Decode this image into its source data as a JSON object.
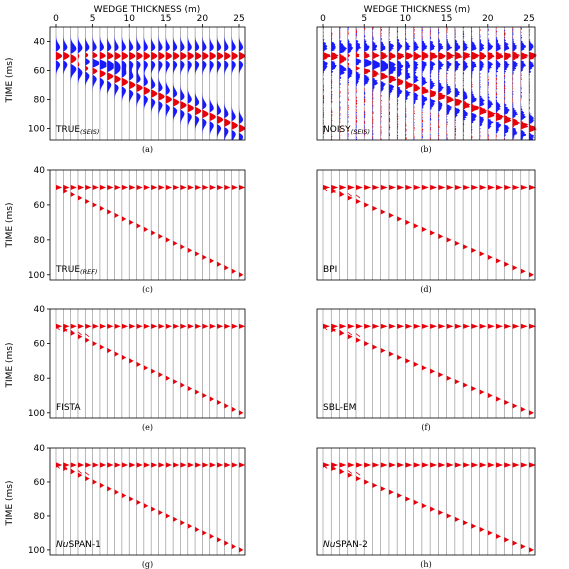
{
  "figure": {
    "top_axis_title": "WEDGE THICKNESS (m)",
    "y_axis_title": "TIME (ms)"
  },
  "chart_data": [
    {
      "id": "a",
      "caption": "(a)",
      "panel_label": "TRUE",
      "panel_label_sub": "(SEIS)",
      "type": "seismic-wiggle",
      "data_kind": "seismic",
      "noisy": false,
      "xlim": [
        0,
        25
      ],
      "ylim": [
        30,
        108
      ],
      "xticks": [
        0,
        5,
        10,
        15,
        20,
        25
      ],
      "yticks": [
        40,
        60,
        80,
        100
      ],
      "show_top_axis": true,
      "show_y_labels": true,
      "traces": 26,
      "reflector_top_time_ms": 50,
      "reflector_base_start_ms": 50,
      "reflector_base_end_ms": 100
    },
    {
      "id": "b",
      "caption": "(b)",
      "panel_label": "NOISY",
      "panel_label_sub": "(SEIS)",
      "type": "seismic-wiggle",
      "data_kind": "seismic",
      "noisy": true,
      "xlim": [
        0,
        25
      ],
      "ylim": [
        30,
        108
      ],
      "xticks": [
        0,
        5,
        10,
        15,
        20,
        25
      ],
      "show_top_axis": true,
      "show_y_labels": false,
      "traces": 26,
      "reflector_top_time_ms": 50,
      "reflector_base_start_ms": 50,
      "reflector_base_end_ms": 100
    },
    {
      "id": "c",
      "caption": "(c)",
      "panel_label": "TRUE",
      "panel_label_sub": "(REF)",
      "type": "reflectivity-spikes",
      "data_kind": "reflectivity",
      "method": "true",
      "xlim": [
        0,
        25
      ],
      "ylim": [
        40,
        103
      ],
      "yticks": [
        40,
        60,
        80,
        100
      ],
      "show_y_labels": true,
      "traces": 26,
      "top_time_ms": 50,
      "base_start_ms": 50,
      "base_end_ms": 100
    },
    {
      "id": "d",
      "caption": "(d)",
      "panel_label": "BPI",
      "panel_label_sub": "",
      "type": "reflectivity-spikes",
      "data_kind": "reflectivity",
      "method": "bpi",
      "xlim": [
        0,
        25
      ],
      "ylim": [
        40,
        103
      ],
      "show_y_labels": false,
      "traces": 26,
      "top_time_ms": 50,
      "base_start_ms": 50,
      "base_end_ms": 100
    },
    {
      "id": "e",
      "caption": "(e)",
      "panel_label": "FISTA",
      "panel_label_sub": "",
      "type": "reflectivity-spikes",
      "data_kind": "reflectivity",
      "method": "fista",
      "xlim": [
        0,
        25
      ],
      "ylim": [
        40,
        103
      ],
      "yticks": [
        40,
        60,
        80,
        100
      ],
      "show_y_labels": true,
      "traces": 26,
      "top_time_ms": 50,
      "base_start_ms": 50,
      "base_end_ms": 100
    },
    {
      "id": "f",
      "caption": "(f)",
      "panel_label": "SBL-EM",
      "panel_label_sub": "",
      "type": "reflectivity-spikes",
      "data_kind": "reflectivity",
      "method": "sbl",
      "xlim": [
        0,
        25
      ],
      "ylim": [
        40,
        103
      ],
      "show_y_labels": false,
      "traces": 26,
      "top_time_ms": 50,
      "base_start_ms": 50,
      "base_end_ms": 100
    },
    {
      "id": "g",
      "caption": "(g)",
      "panel_label": "NuSPAN-1",
      "panel_label_sub": "",
      "type": "reflectivity-spikes",
      "data_kind": "reflectivity",
      "method": "nuspan1",
      "xlim": [
        0,
        25
      ],
      "ylim": [
        40,
        103
      ],
      "yticks": [
        40,
        60,
        80,
        100
      ],
      "show_y_labels": true,
      "traces": 26,
      "top_time_ms": 50,
      "base_start_ms": 50,
      "base_end_ms": 100
    },
    {
      "id": "h",
      "caption": "(h)",
      "panel_label": "NuSPAN-2",
      "panel_label_sub": "",
      "type": "reflectivity-spikes",
      "data_kind": "reflectivity",
      "method": "nuspan2",
      "xlim": [
        0,
        25
      ],
      "ylim": [
        40,
        103
      ],
      "show_y_labels": false,
      "traces": 26,
      "top_time_ms": 50,
      "base_start_ms": 50,
      "base_end_ms": 100
    }
  ],
  "colors": {
    "positive": "#e8000b",
    "negative": "#1a1aff",
    "trace": "#888888",
    "frame": "#000000"
  }
}
